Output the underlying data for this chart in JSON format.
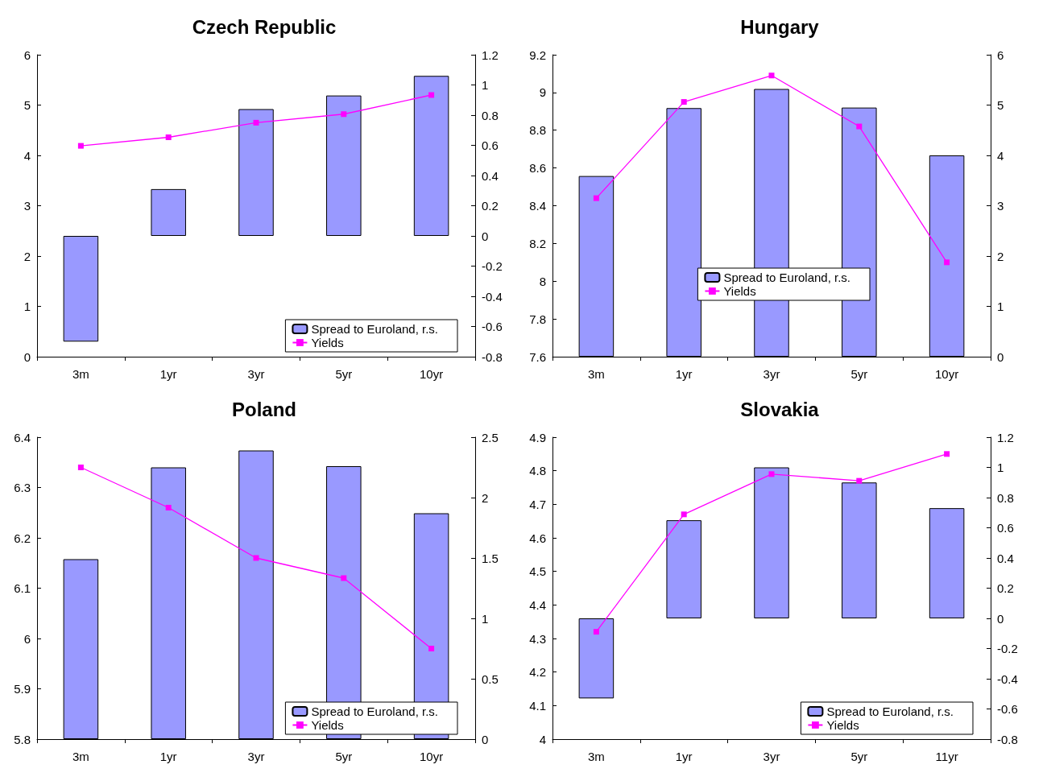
{
  "chart_data": [
    {
      "type": "bar",
      "title": "Czech Republic",
      "categories": [
        "3m",
        "1yr",
        "3yr",
        "5yr",
        "10yr"
      ],
      "series": [
        {
          "name": "Spread to Euroland, r.s.",
          "axis": "y2",
          "color": "#9999ff",
          "values": [
            -0.7,
            0.31,
            0.84,
            0.93,
            1.06
          ]
        },
        {
          "name": "Yields",
          "type": "line",
          "color": "#ff00ff",
          "values": [
            4.19,
            4.36,
            4.65,
            4.82,
            5.2
          ]
        }
      ],
      "ylim": [
        0,
        6
      ],
      "yticks": [
        0,
        1,
        2,
        3,
        4,
        5,
        6
      ],
      "y2lim": [
        -0.8,
        1.2
      ],
      "y2ticks": [
        -0.8,
        -0.6,
        -0.4,
        -0.2,
        0,
        0.2,
        0.4,
        0.6,
        0.8,
        1,
        1.2
      ],
      "grid": false,
      "legend": "bottom right",
      "marker": "square"
    },
    {
      "type": "bar",
      "title": "Hungary",
      "categories": [
        "3m",
        "1yr",
        "3yr",
        "5yr",
        "10yr"
      ],
      "series": [
        {
          "name": "Spread to Euroland, r.s.",
          "axis": "y2",
          "color": "#9999ff",
          "values": [
            3.59,
            4.94,
            5.32,
            4.95,
            4.0
          ]
        },
        {
          "name": "Yields",
          "type": "line",
          "color": "#ff00ff",
          "values": [
            8.44,
            8.95,
            9.09,
            8.82,
            8.1
          ]
        }
      ],
      "ylim": [
        7.6,
        9.2
      ],
      "yticks": [
        7.6,
        7.8,
        8,
        8.2,
        8.4,
        8.6,
        8.8,
        9,
        9.2
      ],
      "y2lim": [
        0,
        6
      ],
      "y2ticks": [
        0,
        1,
        2,
        3,
        4,
        5,
        6
      ],
      "grid": false,
      "legend": "right",
      "marker": "square"
    },
    {
      "type": "bar",
      "title": "Poland",
      "categories": [
        "3m",
        "1yr",
        "3yr",
        "5yr",
        "10yr"
      ],
      "series": [
        {
          "name": "Spread to Euroland, r.s.",
          "axis": "y2",
          "color": "#9999ff",
          "values": [
            1.49,
            2.25,
            2.39,
            2.26,
            1.87
          ]
        },
        {
          "name": "Yields",
          "type": "line",
          "color": "#ff00ff",
          "values": [
            6.34,
            6.26,
            6.16,
            6.12,
            5.98
          ]
        }
      ],
      "ylim": [
        5.8,
        6.4
      ],
      "yticks": [
        5.8,
        5.9,
        6,
        6.1,
        6.2,
        6.3,
        6.4
      ],
      "y2lim": [
        0,
        2.5
      ],
      "y2ticks": [
        0,
        0.5,
        1,
        1.5,
        2,
        2.5
      ],
      "grid": false,
      "legend": "bottom right",
      "marker": "square"
    },
    {
      "type": "bar",
      "title": "Slovakia",
      "categories": [
        "3m",
        "1yr",
        "3yr",
        "5yr",
        "11yr"
      ],
      "series": [
        {
          "name": "Spread to Euroland, r.s.",
          "axis": "y2",
          "color": "#9999ff",
          "values": [
            -0.53,
            0.65,
            1.0,
            0.9,
            0.73
          ]
        },
        {
          "name": "Yields",
          "type": "line",
          "color": "#ff00ff",
          "values": [
            4.32,
            4.67,
            4.79,
            4.77,
            4.85
          ]
        }
      ],
      "ylim": [
        4,
        4.9
      ],
      "yticks": [
        4,
        4.1,
        4.2,
        4.3,
        4.4,
        4.5,
        4.6,
        4.7,
        4.8,
        4.9
      ],
      "y2lim": [
        -0.8,
        1.2
      ],
      "y2ticks": [
        -0.8,
        -0.6,
        -0.4,
        -0.2,
        0,
        0.2,
        0.4,
        0.6,
        0.8,
        1,
        1.2
      ],
      "grid": false,
      "legend": "bottom right",
      "marker": "square"
    }
  ]
}
